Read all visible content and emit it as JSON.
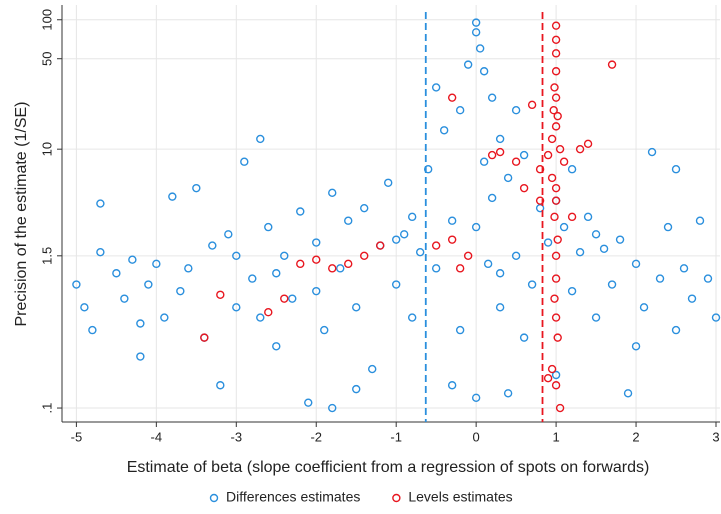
{
  "chart_data": {
    "type": "scatter",
    "x_label": "Estimate of beta (slope coefficient from a regression of spots on forwards)",
    "y_label": "Precision of the estimate (1/SE)",
    "xlim": [
      -5.18,
      3.05
    ],
    "ylim": [
      0.078,
      130
    ],
    "xticks": [
      -5,
      -4,
      -3,
      -2,
      -1,
      0,
      1,
      2,
      3
    ],
    "yticks": [
      {
        "value": 0.1,
        "label": ".1"
      },
      1.5,
      10,
      50,
      100
    ],
    "y_scale": "log",
    "grid": true,
    "legend": "bottom",
    "reference_lines": [
      {
        "value": -0.63,
        "color": "#2a8fdd"
      },
      {
        "value": 0.83,
        "color": "#e8161f"
      }
    ],
    "series": [
      {
        "name": "Differences estimates",
        "color": "#2a8fdd",
        "x": [
          -5,
          -4.9,
          -4.8,
          -4.7,
          -4.7,
          -4.5,
          -4.4,
          -4.3,
          -4.2,
          -4.1,
          -4.0,
          -3.9,
          -3.8,
          -3.7,
          -3.6,
          -3.5,
          -3.4,
          -3.3,
          -3.2,
          -3.1,
          -3.0,
          -2.9,
          -2.8,
          -2.7,
          -2.7,
          -2.6,
          -2.5,
          -2.4,
          -2.3,
          -2.2,
          -2.1,
          -2.0,
          -1.9,
          -1.8,
          -1.8,
          -1.7,
          -1.6,
          -1.5,
          -1.4,
          -1.3,
          -1.2,
          -1.1,
          -1.0,
          -0.9,
          -0.8,
          -0.7,
          -0.6,
          -0.5,
          -0.5,
          -0.4,
          -0.3,
          -0.2,
          -0.2,
          -0.1,
          0,
          0,
          0.05,
          0,
          0,
          0.1,
          0.1,
          0.15,
          0.2,
          0.2,
          0.3,
          0.3,
          0.4,
          0.5,
          0.5,
          0.6,
          0.7,
          0.8,
          0.9,
          1.0,
          1.0,
          1.1,
          1.2,
          1.2,
          1.3,
          1.4,
          1.5,
          1.6,
          1.7,
          1.8,
          1.9,
          2.0,
          2.1,
          2.2,
          2.3,
          2.4,
          2.5,
          2.5,
          2.6,
          2.7,
          2.8,
          2.9,
          3.0,
          -0.3,
          0.4,
          -1.5,
          -4.2,
          -3.0,
          -2.5,
          -2.0,
          -1.0,
          -0.8,
          0.3,
          0.6,
          1.5,
          2.0
        ],
        "y": [
          0.9,
          0.6,
          0.4,
          3.8,
          1.6,
          1.1,
          0.7,
          1.4,
          0.25,
          0.9,
          1.3,
          0.5,
          4.3,
          0.8,
          1.2,
          5.0,
          0.35,
          1.8,
          0.15,
          2.2,
          0.6,
          8.0,
          1.0,
          12,
          0.5,
          2.5,
          0.3,
          1.5,
          0.7,
          3.3,
          0.11,
          1.9,
          0.4,
          4.6,
          0.1,
          1.2,
          2.8,
          0.6,
          3.5,
          0.2,
          1.8,
          5.5,
          0.9,
          2.2,
          0.5,
          1.6,
          7.0,
          30,
          1.2,
          14,
          2.8,
          20,
          0.4,
          45,
          95,
          80,
          60,
          2.5,
          0.12,
          40,
          8,
          1.3,
          25,
          4.2,
          12,
          0.6,
          6,
          20,
          1.5,
          9,
          0.9,
          3.5,
          1.9,
          4.0,
          0.18,
          2.5,
          7,
          0.8,
          1.6,
          3.0,
          0.5,
          1.7,
          0.9,
          2.0,
          0.13,
          1.3,
          0.6,
          9.5,
          1.0,
          2.5,
          0.4,
          7,
          1.2,
          0.7,
          2.8,
          1.0,
          0.5,
          0.15,
          0.13,
          0.14,
          0.45,
          1.5,
          1.1,
          0.8,
          2.0,
          3.0,
          1.1,
          0.35,
          2.2,
          0.3
        ]
      },
      {
        "name": "Levels estimates",
        "color": "#e8161f",
        "x": [
          1,
          1,
          1,
          1,
          0.98,
          1,
          0.97,
          1.02,
          1,
          0.95,
          1.05,
          0.9,
          1.1,
          0.95,
          1,
          1,
          0.98,
          1.02,
          1,
          1,
          0.98,
          1,
          1.02,
          0.95,
          1,
          1.05,
          0.9,
          1.7,
          0.7,
          1.3,
          1.4,
          0.8,
          1.2,
          0.2,
          0.3,
          -0.3,
          -0.1,
          -0.3,
          -0.2,
          -0.5,
          -1.2,
          -1.4,
          -1.6,
          -1.8,
          -2.0,
          -2.2,
          -2.6,
          -2.4,
          -3.4,
          -3.2,
          0.5,
          0.6,
          0.8
        ],
        "y": [
          90,
          70,
          55,
          40,
          30,
          25,
          20,
          18,
          15,
          12,
          10,
          9,
          8,
          6,
          5,
          4,
          3,
          2,
          1.5,
          1,
          0.7,
          0.5,
          0.35,
          0.2,
          0.15,
          0.1,
          0.17,
          45,
          22,
          10,
          11,
          7,
          3,
          9,
          9.5,
          2.0,
          1.5,
          25,
          1.2,
          1.8,
          1.8,
          1.5,
          1.3,
          1.2,
          1.4,
          1.3,
          0.55,
          0.7,
          0.35,
          0.75,
          8,
          5,
          4
        ]
      }
    ]
  }
}
